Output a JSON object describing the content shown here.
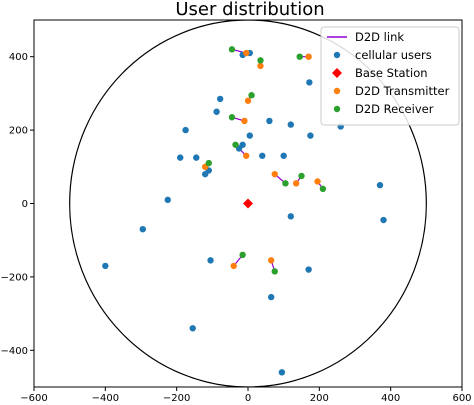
{
  "chart_data": {
    "type": "scatter",
    "title": "User distribution",
    "xlabel": "",
    "ylabel": "",
    "xlim": [
      -600,
      600
    ],
    "ylim": [
      -500,
      500
    ],
    "x_ticks": [
      -600,
      -400,
      -200,
      0,
      200,
      400,
      600
    ],
    "y_ticks": [
      -400,
      -200,
      0,
      200,
      400
    ],
    "cell_radius": 500,
    "grid": false,
    "legend_position": "top-right",
    "colors": {
      "d2d_link": "#9400d3",
      "cellular": "#1f77b4",
      "base_station": "#ff0000",
      "transmitter": "#ff7f0e",
      "receiver": "#2ca02c",
      "circle": "#000000"
    },
    "legend": [
      {
        "label": "D2D link",
        "marker": "line",
        "color_key": "d2d_link"
      },
      {
        "label": "cellular users",
        "marker": "dot",
        "color_key": "cellular"
      },
      {
        "label": "Base Station",
        "marker": "diamond",
        "color_key": "base_station"
      },
      {
        "label": "D2D Transmitter",
        "marker": "dot",
        "color_key": "transmitter"
      },
      {
        "label": "D2D Receiver",
        "marker": "dot",
        "color_key": "receiver"
      }
    ],
    "base_station": [
      0,
      0
    ],
    "cellular_users": [
      [
        5,
        410
      ],
      [
        172,
        330
      ],
      [
        -78,
        285
      ],
      [
        -88,
        250
      ],
      [
        60,
        225
      ],
      [
        120,
        215
      ],
      [
        260,
        210
      ],
      [
        -175,
        200
      ],
      [
        5,
        185
      ],
      [
        175,
        185
      ],
      [
        -145,
        125
      ],
      [
        -25,
        150
      ],
      [
        -190,
        125
      ],
      [
        40,
        130
      ],
      [
        100,
        130
      ],
      [
        -120,
        80
      ],
      [
        -15,
        160
      ],
      [
        -110,
        90
      ],
      [
        -225,
        10
      ],
      [
        -295,
        -70
      ],
      [
        -400,
        -170
      ],
      [
        370,
        50
      ],
      [
        380,
        -45
      ],
      [
        120,
        -35
      ],
      [
        -105,
        -155
      ],
      [
        170,
        -180
      ],
      [
        65,
        -255
      ],
      [
        -155,
        -340
      ],
      [
        95,
        -460
      ],
      [
        -15,
        405
      ]
    ],
    "d2d_pairs": [
      {
        "tx": [
          -5,
          410
        ],
        "rx": [
          -45,
          420
        ]
      },
      {
        "tx": [
          170,
          400
        ],
        "rx": [
          145,
          400
        ]
      },
      {
        "tx": [
          35,
          375
        ],
        "rx": [
          35,
          390
        ]
      },
      {
        "tx": [
          0,
          280
        ],
        "rx": [
          10,
          295
        ]
      },
      {
        "tx": [
          -10,
          225
        ],
        "rx": [
          -45,
          235
        ]
      },
      {
        "tx": [
          -5,
          130
        ],
        "rx": [
          -35,
          160
        ]
      },
      {
        "tx": [
          75,
          80
        ],
        "rx": [
          105,
          55
        ]
      },
      {
        "tx": [
          195,
          60
        ],
        "rx": [
          210,
          40
        ]
      },
      {
        "tx": [
          135,
          55
        ],
        "rx": [
          150,
          75
        ]
      },
      {
        "tx": [
          -120,
          100
        ],
        "rx": [
          -110,
          110
        ]
      },
      {
        "tx": [
          -40,
          -170
        ],
        "rx": [
          -15,
          -140
        ]
      },
      {
        "tx": [
          65,
          -155
        ],
        "rx": [
          75,
          -185
        ]
      }
    ]
  }
}
